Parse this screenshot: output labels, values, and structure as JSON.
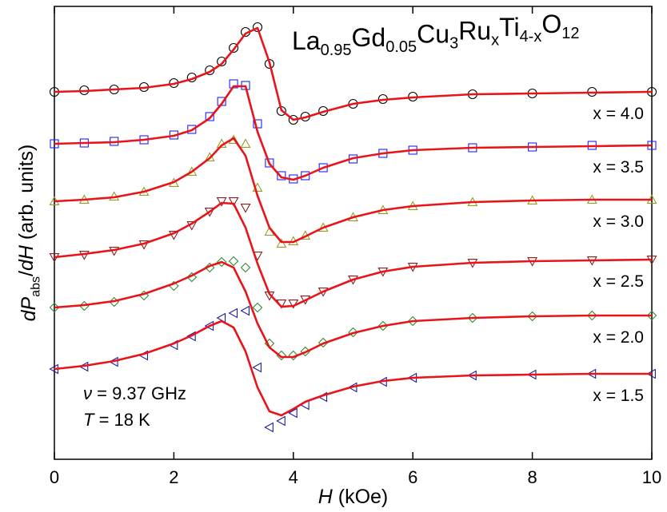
{
  "chart_data": {
    "type": "line",
    "title_parts": [
      {
        "text": "La",
        "style": "normal"
      },
      {
        "text": "0.95",
        "style": "sub"
      },
      {
        "text": "Gd",
        "style": "normal"
      },
      {
        "text": "0.05",
        "style": "sub"
      },
      {
        "text": "Cu",
        "style": "normal"
      },
      {
        "text": "3",
        "style": "sub"
      },
      {
        "text": "Ru",
        "style": "normal"
      },
      {
        "text": "x",
        "style": "sub"
      },
      {
        "text": "Ti",
        "style": "normal"
      },
      {
        "text": "4-x",
        "style": "sub"
      },
      {
        "text": "O",
        "style": "normal"
      },
      {
        "text": "12",
        "style": "sub"
      }
    ],
    "xlabel_parts": [
      {
        "text": "H",
        "style": "italic"
      },
      {
        "text": " (kOe)",
        "style": "normal"
      }
    ],
    "ylabel_parts": [
      {
        "text": "dP",
        "style": "italic"
      },
      {
        "text": "abs",
        "style": "sub"
      },
      {
        "text": "/",
        "style": "normal"
      },
      {
        "text": "dH",
        "style": "italic"
      },
      {
        "text": " (arb. units)",
        "style": "normal"
      }
    ],
    "annotations": [
      [
        {
          "text": "ν",
          "style": "italic"
        },
        {
          "text": " = 9.37 GHz",
          "style": "normal"
        }
      ],
      [
        {
          "text": "T",
          "style": "italic"
        },
        {
          "text": " = 18 K",
          "style": "normal"
        }
      ]
    ],
    "x": [
      0,
      0.5,
      1,
      1.5,
      2,
      2.3,
      2.6,
      2.8,
      3.0,
      3.2,
      3.4,
      3.6,
      3.8,
      4.0,
      4.2,
      4.5,
      5,
      5.5,
      6,
      7,
      8,
      9,
      10
    ],
    "xlim": [
      0,
      10
    ],
    "xticks": [
      0,
      2,
      4,
      6,
      8,
      10
    ],
    "ylim": [
      0,
      11.34
    ],
    "fit_color": "#e8141a",
    "series": [
      {
        "name": "x = 4.0",
        "color": "#000000",
        "marker": "circle",
        "values": [
          9.2,
          9.24,
          9.26,
          9.32,
          9.42,
          9.56,
          9.74,
          9.96,
          10.3,
          10.7,
          10.82,
          9.9,
          8.72,
          8.5,
          8.58,
          8.72,
          8.9,
          9.02,
          9.08,
          9.14,
          9.16,
          9.2,
          9.2
        ],
        "fit": [
          9.2,
          9.22,
          9.26,
          9.3,
          9.4,
          9.52,
          9.7,
          9.9,
          10.26,
          10.66,
          10.8,
          9.94,
          8.74,
          8.5,
          8.56,
          8.7,
          8.9,
          9.0,
          9.06,
          9.14,
          9.16,
          9.18,
          9.2
        ]
      },
      {
        "name": "x = 3.5",
        "color": "#2020ff",
        "marker": "square",
        "values": [
          7.9,
          7.92,
          7.96,
          8.0,
          8.12,
          8.26,
          8.58,
          8.96,
          9.4,
          9.36,
          8.4,
          7.42,
          7.1,
          7.02,
          7.1,
          7.3,
          7.52,
          7.66,
          7.74,
          7.8,
          7.82,
          7.86,
          7.86
        ],
        "fit": [
          7.9,
          7.92,
          7.94,
          8.0,
          8.1,
          8.24,
          8.54,
          8.9,
          9.34,
          9.34,
          8.2,
          7.4,
          7.06,
          7.0,
          7.1,
          7.3,
          7.54,
          7.66,
          7.74,
          7.8,
          7.82,
          7.84,
          7.86
        ]
      },
      {
        "name": "x = 3.0",
        "color": "#9a9a20",
        "marker": "triangle-up",
        "values": [
          6.46,
          6.5,
          6.58,
          6.7,
          6.92,
          7.2,
          7.56,
          7.9,
          8.0,
          7.9,
          6.8,
          5.7,
          5.4,
          5.46,
          5.6,
          5.8,
          6.06,
          6.24,
          6.34,
          6.44,
          6.48,
          6.5,
          6.5
        ],
        "fit": [
          6.46,
          6.5,
          6.56,
          6.7,
          6.94,
          7.2,
          7.54,
          7.86,
          8.04,
          7.6,
          6.6,
          5.8,
          5.44,
          5.44,
          5.58,
          5.8,
          6.06,
          6.24,
          6.34,
          6.44,
          6.48,
          6.5,
          6.5
        ]
      },
      {
        "name": "x = 2.5",
        "color": "#8b1a1a",
        "marker": "triangle-down",
        "values": [
          5.06,
          5.12,
          5.22,
          5.38,
          5.62,
          5.86,
          6.2,
          6.46,
          6.46,
          6.3,
          5.1,
          4.1,
          3.9,
          3.9,
          4.0,
          4.2,
          4.5,
          4.7,
          4.82,
          4.92,
          4.96,
          4.98,
          5.0
        ],
        "fit": [
          5.06,
          5.14,
          5.24,
          5.4,
          5.66,
          5.9,
          6.2,
          6.42,
          6.4,
          5.8,
          4.9,
          4.14,
          3.82,
          3.84,
          3.98,
          4.2,
          4.5,
          4.7,
          4.82,
          4.92,
          4.96,
          4.98,
          5.0
        ]
      },
      {
        "name": "x = 2.0",
        "color": "#2e8b2e",
        "marker": "diamond",
        "values": [
          3.8,
          3.84,
          3.94,
          4.1,
          4.34,
          4.56,
          4.8,
          4.94,
          4.96,
          4.8,
          3.8,
          2.9,
          2.6,
          2.6,
          2.7,
          2.92,
          3.18,
          3.34,
          3.46,
          3.54,
          3.58,
          3.6,
          3.6
        ],
        "fit": [
          3.8,
          3.86,
          3.96,
          4.14,
          4.4,
          4.6,
          4.84,
          4.94,
          4.8,
          4.2,
          3.4,
          2.8,
          2.56,
          2.56,
          2.68,
          2.9,
          3.16,
          3.34,
          3.46,
          3.54,
          3.58,
          3.6,
          3.6
        ]
      },
      {
        "name": "x = 1.5",
        "color": "#1c1c9c",
        "marker": "triangle-left",
        "values": [
          2.26,
          2.32,
          2.44,
          2.6,
          2.86,
          3.08,
          3.34,
          3.54,
          3.66,
          3.72,
          2.3,
          0.8,
          0.96,
          1.16,
          1.36,
          1.56,
          1.8,
          1.94,
          2.04,
          2.1,
          2.12,
          2.14,
          2.14
        ],
        "fit": [
          2.26,
          2.34,
          2.46,
          2.64,
          2.9,
          3.1,
          3.34,
          3.46,
          3.3,
          2.7,
          1.8,
          1.2,
          1.1,
          1.26,
          1.44,
          1.6,
          1.82,
          1.96,
          2.04,
          2.1,
          2.12,
          2.14,
          2.14
        ]
      }
    ]
  }
}
